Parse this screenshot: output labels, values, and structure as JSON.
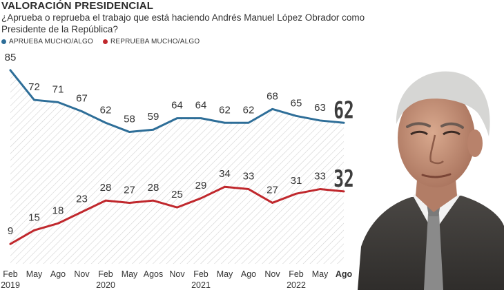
{
  "chart_data": {
    "type": "line",
    "title": "VALORACIÓN PRESIDENCIAL",
    "subtitle": "¿Aprueba o reprueba el trabajo que está haciendo Andrés Manuel López Obrador como Presidente de la República?",
    "categories": [
      "Feb",
      "May",
      "Ago",
      "Nov",
      "Feb",
      "May",
      "Agos",
      "Nov",
      "Feb",
      "May",
      "Ago",
      "Nov",
      "Feb",
      "May",
      "Ago"
    ],
    "years": [
      "2019",
      "",
      "",
      "",
      "2020",
      "",
      "",
      "",
      "2021",
      "",
      "",
      "",
      "2022",
      "",
      ""
    ],
    "series": [
      {
        "name": "APRUEBA MUCHO/ALGO",
        "color": "#2e6e98",
        "values": [
          85,
          72,
          71,
          67,
          62,
          58,
          59,
          64,
          64,
          62,
          62,
          68,
          65,
          63,
          62
        ]
      },
      {
        "name": "REPRUEBA MUCHO/ALGO",
        "color": "#c0282d",
        "values": [
          9,
          15,
          18,
          23,
          28,
          27,
          28,
          25,
          29,
          34,
          33,
          27,
          31,
          33,
          32
        ]
      }
    ],
    "legend_position": "top-left",
    "grid": false,
    "ylim": [
      0,
      100
    ]
  },
  "colors": {
    "approve": "#2e6e98",
    "disapprove": "#c0282d",
    "hatch": "#d2d2d2"
  },
  "image": {
    "name": "president-portrait"
  }
}
